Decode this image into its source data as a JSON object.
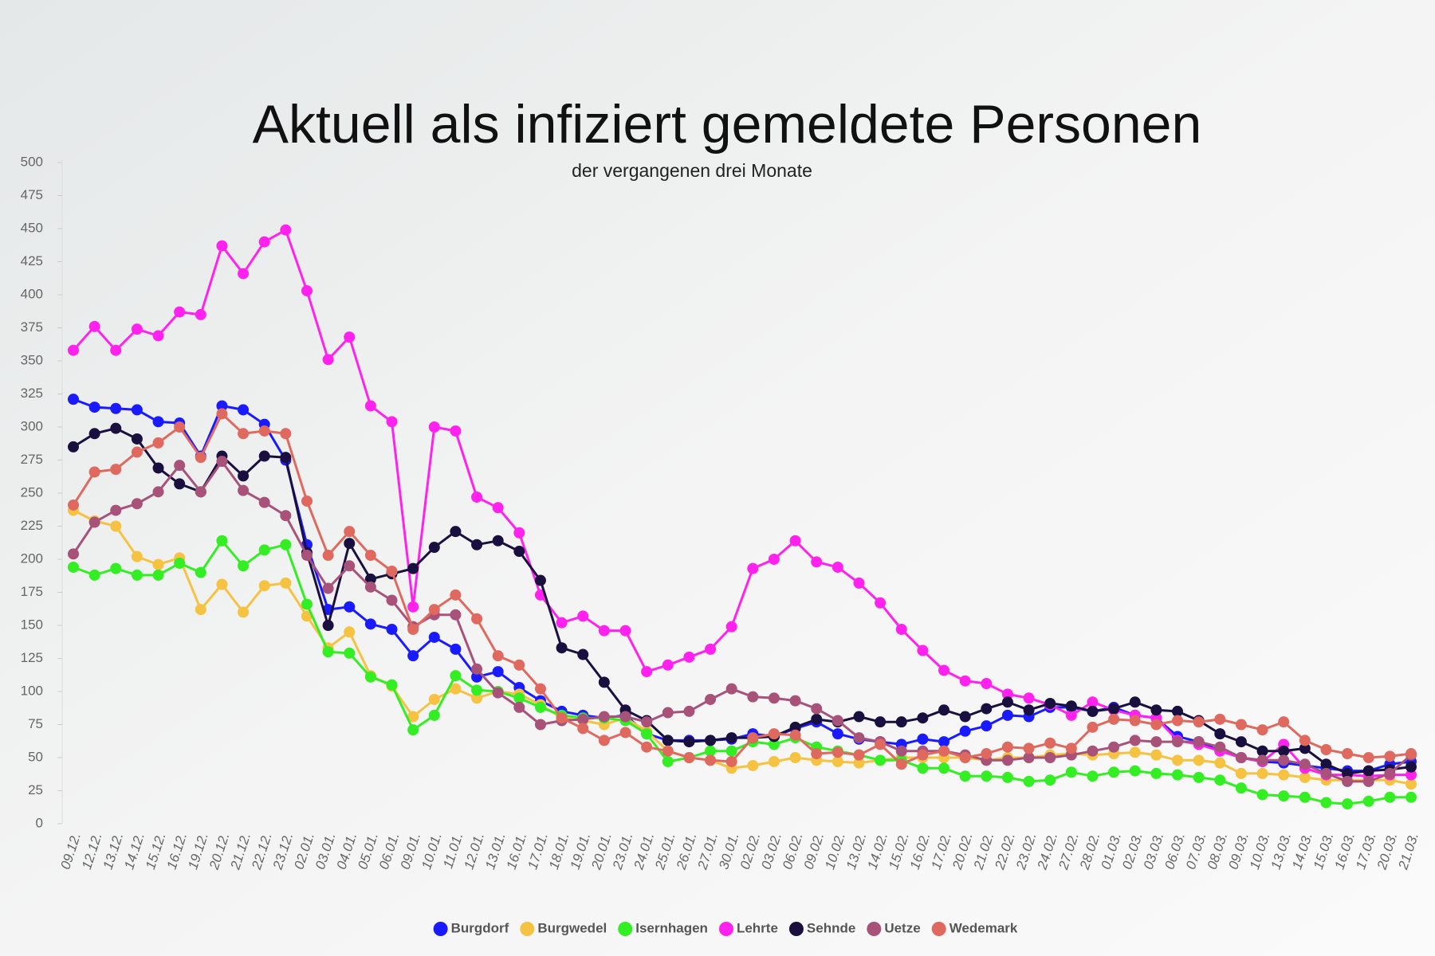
{
  "chart_data": {
    "type": "line",
    "title": "Aktuell als infiziert gemeldete Personen",
    "subtitle": "der vergangenen drei Monate",
    "categories": [
      "09.12.",
      "12.12.",
      "13.12.",
      "14.12.",
      "15.12.",
      "16.12.",
      "19.12.",
      "20.12.",
      "21.12.",
      "22.12.",
      "23.12.",
      "02.01.",
      "03.01.",
      "04.01.",
      "05.01.",
      "06.01.",
      "09.01.",
      "10.01.",
      "11.01.",
      "12.01.",
      "13.01.",
      "16.01.",
      "17.01.",
      "18.01.",
      "19.01.",
      "20.01.",
      "23.01.",
      "24.01.",
      "25.01.",
      "26.01.",
      "27.01.",
      "30.01.",
      "02.02.",
      "03.02.",
      "06.02.",
      "09.02.",
      "10.02.",
      "13.02.",
      "14.02.",
      "15.02.",
      "16.02.",
      "17.02.",
      "20.02.",
      "21.02.",
      "22.02.",
      "23.02.",
      "24.02.",
      "27.02.",
      "28.02.",
      "01.03.",
      "02.03.",
      "03.03.",
      "06.03.",
      "07.03.",
      "08.03.",
      "09.03.",
      "10.03.",
      "13.03.",
      "14.03.",
      "15.03.",
      "16.03.",
      "17.03.",
      "20.03.",
      "21.03."
    ],
    "series": [
      {
        "name": "Burgdorf",
        "color": "#1a1aff",
        "values": [
          321,
          315,
          314,
          313,
          304,
          303,
          278,
          316,
          313,
          302,
          275,
          211,
          162,
          164,
          151,
          147,
          127,
          141,
          132,
          111,
          115,
          103,
          93,
          85,
          82,
          80,
          82,
          68,
          63,
          63,
          63,
          64,
          68,
          66,
          72,
          77,
          68,
          64,
          62,
          60,
          64,
          62,
          70,
          74,
          82,
          81,
          88,
          88,
          85,
          88,
          82,
          80,
          66,
          62,
          55,
          50,
          47,
          46,
          44,
          42,
          40,
          40,
          45,
          47
        ]
      },
      {
        "name": "Burgwedel",
        "color": "#f5c242",
        "values": [
          237,
          229,
          225,
          202,
          196,
          201,
          162,
          181,
          160,
          180,
          182,
          157,
          133,
          145,
          112,
          104,
          81,
          94,
          102,
          95,
          100,
          98,
          90,
          80,
          78,
          75,
          80,
          70,
          55,
          50,
          48,
          42,
          44,
          47,
          50,
          48,
          47,
          46,
          48,
          50,
          50,
          50,
          50,
          48,
          50,
          50,
          52,
          53,
          52,
          53,
          54,
          52,
          48,
          48,
          46,
          38,
          38,
          37,
          35,
          33,
          33,
          33,
          33,
          30
        ]
      },
      {
        "name": "Isernhagen",
        "color": "#33ee22",
        "values": [
          194,
          188,
          193,
          188,
          188,
          197,
          190,
          214,
          195,
          207,
          211,
          166,
          130,
          129,
          111,
          105,
          71,
          82,
          112,
          101,
          100,
          95,
          88,
          82,
          80,
          80,
          78,
          68,
          47,
          50,
          55,
          55,
          62,
          60,
          65,
          58,
          55,
          52,
          48,
          48,
          42,
          42,
          36,
          36,
          35,
          32,
          33,
          39,
          36,
          39,
          40,
          38,
          37,
          35,
          33,
          27,
          22,
          21,
          20,
          16,
          15,
          17,
          20,
          20
        ]
      },
      {
        "name": "Lehrte",
        "color": "#ff22ee",
        "values": [
          358,
          376,
          358,
          374,
          369,
          387,
          385,
          437,
          416,
          440,
          449,
          403,
          351,
          368,
          316,
          304,
          164,
          300,
          297,
          247,
          239,
          220,
          173,
          152,
          157,
          146,
          146,
          115,
          120,
          126,
          132,
          149,
          193,
          200,
          214,
          198,
          194,
          182,
          167,
          147,
          131,
          116,
          108,
          106,
          98,
          95,
          90,
          82,
          92,
          86,
          82,
          80,
          63,
          60,
          55,
          50,
          47,
          60,
          42,
          37,
          37,
          36,
          37,
          37
        ]
      },
      {
        "name": "Sehnde",
        "color": "#1a1040",
        "values": [
          285,
          295,
          299,
          291,
          269,
          257,
          251,
          278,
          263,
          278,
          277,
          205,
          150,
          212,
          185,
          189,
          193,
          209,
          221,
          211,
          214,
          206,
          184,
          133,
          128,
          107,
          86,
          78,
          63,
          62,
          63,
          65,
          65,
          66,
          73,
          79,
          77,
          81,
          77,
          77,
          80,
          86,
          81,
          87,
          92,
          86,
          91,
          89,
          85,
          87,
          92,
          86,
          85,
          78,
          68,
          62,
          55,
          55,
          57,
          45,
          38,
          40,
          41,
          43
        ]
      },
      {
        "name": "Uetze",
        "color": "#a8527a",
        "values": [
          204,
          228,
          237,
          242,
          251,
          271,
          251,
          274,
          252,
          243,
          233,
          203,
          178,
          195,
          179,
          169,
          149,
          158,
          158,
          117,
          99,
          88,
          75,
          78,
          79,
          81,
          81,
          77,
          84,
          85,
          94,
          102,
          96,
          95,
          93,
          87,
          78,
          65,
          62,
          55,
          55,
          55,
          52,
          48,
          48,
          50,
          50,
          52,
          55,
          58,
          63,
          62,
          62,
          62,
          58,
          50,
          48,
          48,
          45,
          38,
          32,
          32,
          38,
          52
        ]
      },
      {
        "name": "Wedemark",
        "color": "#e0695f",
        "values": [
          241,
          266,
          268,
          281,
          288,
          300,
          277,
          310,
          295,
          297,
          295,
          244,
          203,
          221,
          203,
          191,
          147,
          162,
          173,
          155,
          127,
          120,
          102,
          80,
          72,
          63,
          69,
          58,
          55,
          50,
          48,
          47,
          65,
          68,
          67,
          53,
          54,
          52,
          60,
          45,
          52,
          55,
          50,
          53,
          58,
          57,
          61,
          57,
          73,
          79,
          78,
          75,
          78,
          77,
          79,
          75,
          71,
          77,
          63,
          56,
          53,
          50,
          51,
          53
        ]
      }
    ],
    "ylim": [
      0,
      500
    ],
    "yticks": [
      0,
      25,
      50,
      75,
      100,
      125,
      150,
      175,
      200,
      225,
      250,
      275,
      300,
      325,
      350,
      375,
      400,
      425,
      450,
      475,
      500
    ],
    "legend": "bottom"
  }
}
